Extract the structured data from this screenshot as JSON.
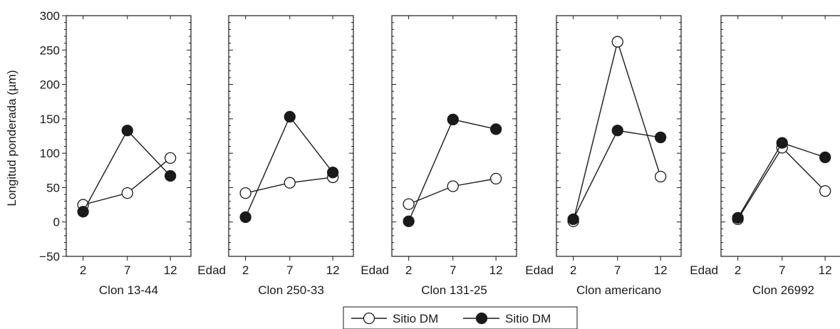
{
  "chart_data": {
    "type": "line",
    "ylabel": "Longitud ponderada (µm)",
    "xlabel_word": "Edad",
    "ylim": [
      -50,
      300
    ],
    "yticks": [
      -50,
      0,
      50,
      100,
      150,
      200,
      250,
      300
    ],
    "categories": [
      "2",
      "7",
      "12"
    ],
    "grid": false,
    "legend_placement": "bottom-center",
    "series_names": [
      "Sitio DM",
      "Sitio DM"
    ],
    "panels": [
      {
        "title": "Clon 13-44",
        "series": [
          {
            "name": "Sitio DM",
            "marker": "open",
            "values": [
              25,
              42,
              93
            ]
          },
          {
            "name": "Sitio DM",
            "marker": "filled",
            "values": [
              15,
              133,
              67
            ]
          }
        ]
      },
      {
        "title": "Clon 250-33",
        "series": [
          {
            "name": "Sitio DM",
            "marker": "open",
            "values": [
              42,
              57,
              65
            ]
          },
          {
            "name": "Sitio DM",
            "marker": "filled",
            "values": [
              7,
              153,
              72
            ]
          }
        ]
      },
      {
        "title": "Clon 131-25",
        "series": [
          {
            "name": "Sitio DM",
            "marker": "open",
            "values": [
              26,
              52,
              63
            ]
          },
          {
            "name": "Sitio DM",
            "marker": "filled",
            "values": [
              1,
              149,
              135
            ]
          }
        ]
      },
      {
        "title": "Clon americano",
        "series": [
          {
            "name": "Sitio DM",
            "marker": "open",
            "values": [
              1,
              262,
              66
            ]
          },
          {
            "name": "Sitio DM",
            "marker": "filled",
            "values": [
              4,
              133,
              123
            ]
          }
        ]
      },
      {
        "title": "Clon 26992",
        "series": [
          {
            "name": "Sitio DM",
            "marker": "open",
            "values": [
              4,
              108,
              45
            ]
          },
          {
            "name": "Sitio DM",
            "marker": "filled",
            "values": [
              6,
              115,
              94
            ]
          }
        ]
      }
    ]
  }
}
